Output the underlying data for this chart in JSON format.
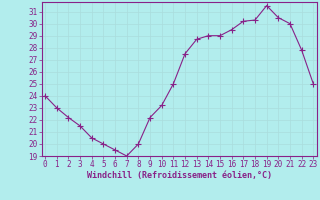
{
  "x": [
    0,
    1,
    2,
    3,
    4,
    5,
    6,
    7,
    8,
    9,
    10,
    11,
    12,
    13,
    14,
    15,
    16,
    17,
    18,
    19,
    20,
    21,
    22,
    23
  ],
  "y": [
    24,
    23,
    22.2,
    21.5,
    20.5,
    20,
    19.5,
    19,
    20,
    22.2,
    23.2,
    25,
    27.5,
    28.7,
    29,
    29,
    29.5,
    30.2,
    30.3,
    31.5,
    30.5,
    30,
    27.8,
    25
  ],
  "line_color": "#882288",
  "marker": "+",
  "marker_size": 4,
  "bg_color": "#b2eded",
  "grid_color": "#aadddd",
  "xlabel": "Windchill (Refroidissement éolien,°C)",
  "ylim_min": 19,
  "ylim_max": 31.8,
  "xlim_min": -0.3,
  "xlim_max": 23.3,
  "yticks": [
    19,
    20,
    21,
    22,
    23,
    24,
    25,
    26,
    27,
    28,
    29,
    30,
    31
  ],
  "xtick_labels": [
    "0",
    "1",
    "2",
    "3",
    "4",
    "5",
    "6",
    "7",
    "8",
    "9",
    "10",
    "11",
    "12",
    "13",
    "14",
    "15",
    "16",
    "17",
    "18",
    "19",
    "20",
    "21",
    "22",
    "23"
  ],
  "tick_color": "#882288",
  "spine_color": "#882288",
  "font_family": "monospace"
}
